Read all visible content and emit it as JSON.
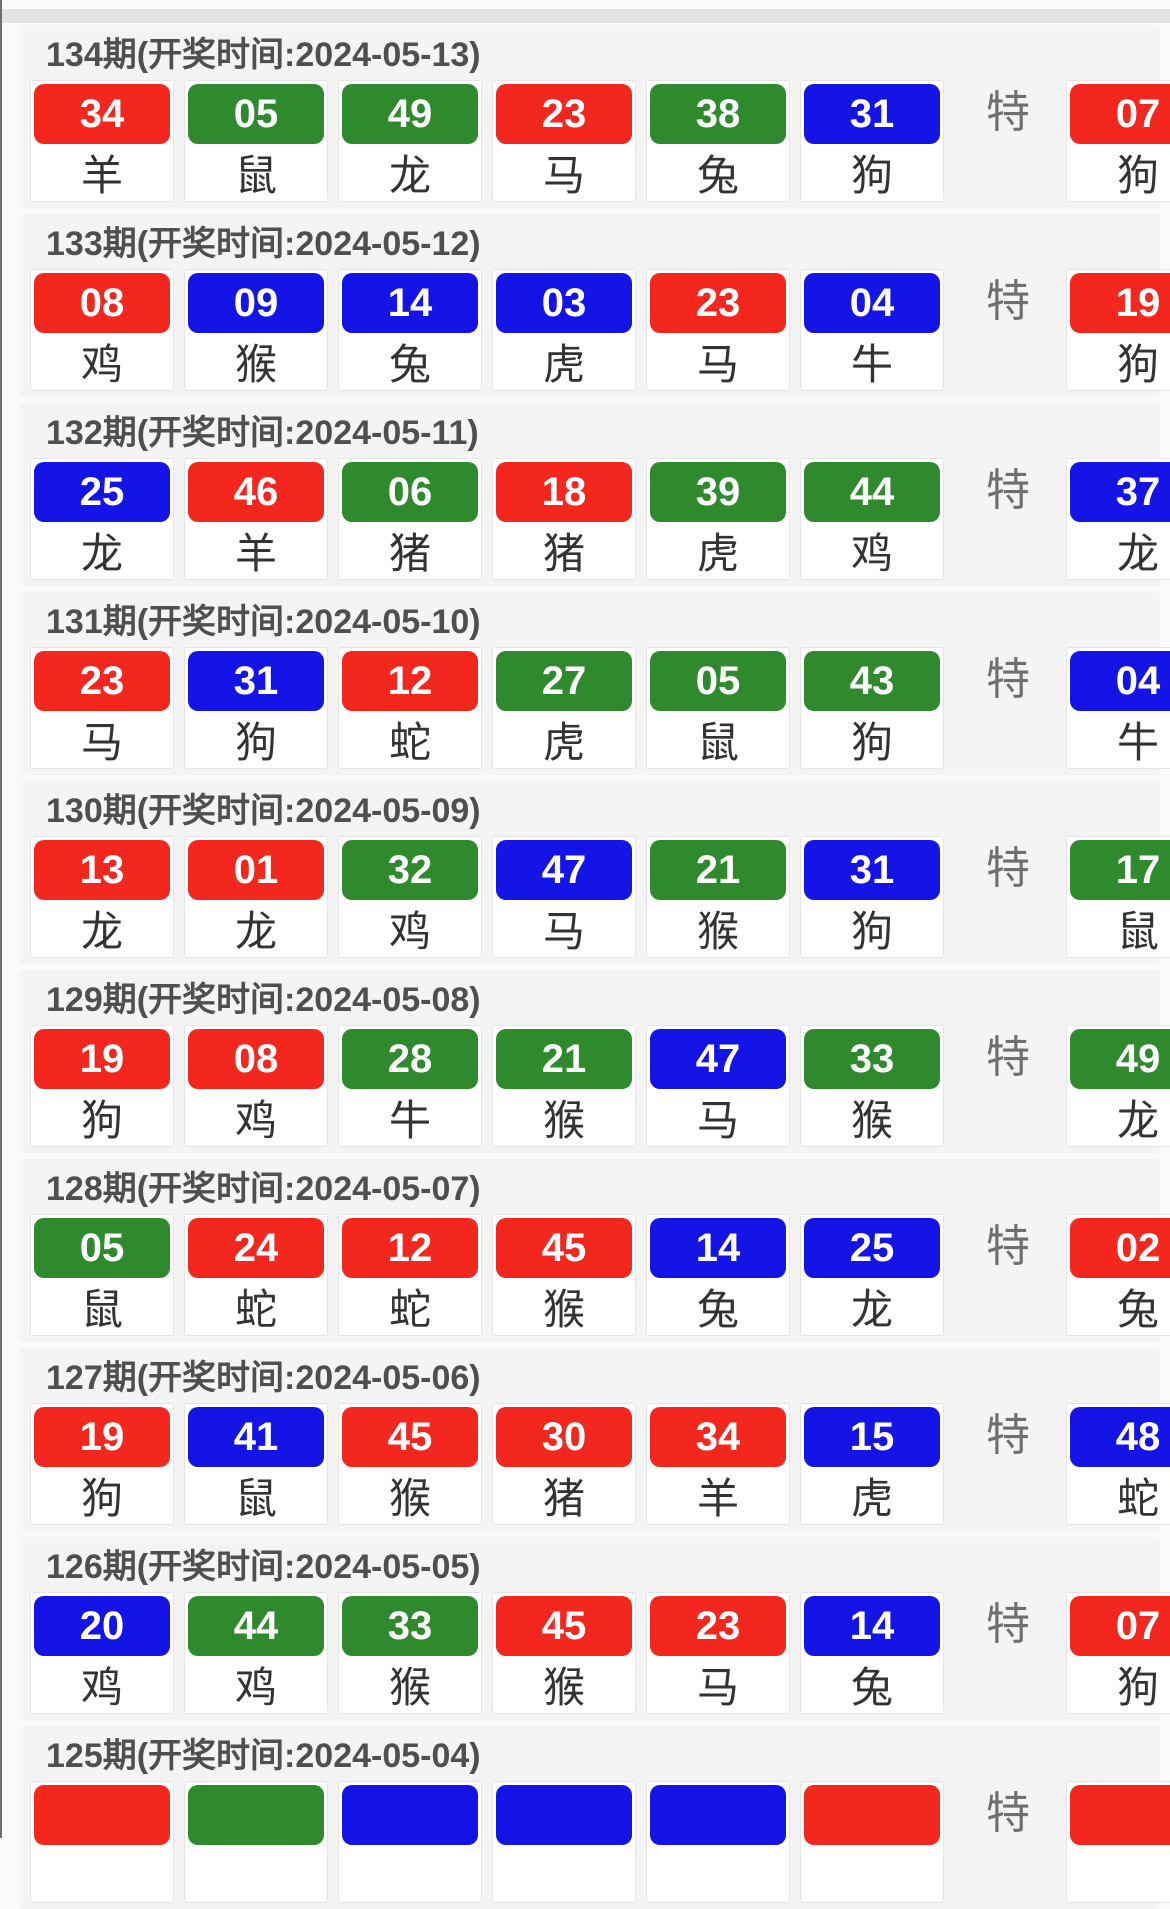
{
  "labels": {
    "special": "特"
  },
  "colors": {
    "red": "#f3271d",
    "green": "#2f8a2d",
    "blue": "#1414e6"
  },
  "periods": [
    {
      "header": "134期(开奖时间:2024-05-13)",
      "balls": [
        {
          "num": "34",
          "color": "red",
          "zodiac": "羊"
        },
        {
          "num": "05",
          "color": "green",
          "zodiac": "鼠"
        },
        {
          "num": "49",
          "color": "green",
          "zodiac": "龙"
        },
        {
          "num": "23",
          "color": "red",
          "zodiac": "马"
        },
        {
          "num": "38",
          "color": "green",
          "zodiac": "兔"
        },
        {
          "num": "31",
          "color": "blue",
          "zodiac": "狗"
        }
      ],
      "special": {
        "num": "07",
        "color": "red",
        "zodiac": "狗"
      }
    },
    {
      "header": "133期(开奖时间:2024-05-12)",
      "balls": [
        {
          "num": "08",
          "color": "red",
          "zodiac": "鸡"
        },
        {
          "num": "09",
          "color": "blue",
          "zodiac": "猴"
        },
        {
          "num": "14",
          "color": "blue",
          "zodiac": "兔"
        },
        {
          "num": "03",
          "color": "blue",
          "zodiac": "虎"
        },
        {
          "num": "23",
          "color": "red",
          "zodiac": "马"
        },
        {
          "num": "04",
          "color": "blue",
          "zodiac": "牛"
        }
      ],
      "special": {
        "num": "19",
        "color": "red",
        "zodiac": "狗"
      }
    },
    {
      "header": "132期(开奖时间:2024-05-11)",
      "balls": [
        {
          "num": "25",
          "color": "blue",
          "zodiac": "龙"
        },
        {
          "num": "46",
          "color": "red",
          "zodiac": "羊"
        },
        {
          "num": "06",
          "color": "green",
          "zodiac": "猪"
        },
        {
          "num": "18",
          "color": "red",
          "zodiac": "猪"
        },
        {
          "num": "39",
          "color": "green",
          "zodiac": "虎"
        },
        {
          "num": "44",
          "color": "green",
          "zodiac": "鸡"
        }
      ],
      "special": {
        "num": "37",
        "color": "blue",
        "zodiac": "龙"
      }
    },
    {
      "header": "131期(开奖时间:2024-05-10)",
      "balls": [
        {
          "num": "23",
          "color": "red",
          "zodiac": "马"
        },
        {
          "num": "31",
          "color": "blue",
          "zodiac": "狗"
        },
        {
          "num": "12",
          "color": "red",
          "zodiac": "蛇"
        },
        {
          "num": "27",
          "color": "green",
          "zodiac": "虎"
        },
        {
          "num": "05",
          "color": "green",
          "zodiac": "鼠"
        },
        {
          "num": "43",
          "color": "green",
          "zodiac": "狗"
        }
      ],
      "special": {
        "num": "04",
        "color": "blue",
        "zodiac": "牛"
      }
    },
    {
      "header": "130期(开奖时间:2024-05-09)",
      "balls": [
        {
          "num": "13",
          "color": "red",
          "zodiac": "龙"
        },
        {
          "num": "01",
          "color": "red",
          "zodiac": "龙"
        },
        {
          "num": "32",
          "color": "green",
          "zodiac": "鸡"
        },
        {
          "num": "47",
          "color": "blue",
          "zodiac": "马"
        },
        {
          "num": "21",
          "color": "green",
          "zodiac": "猴"
        },
        {
          "num": "31",
          "color": "blue",
          "zodiac": "狗"
        }
      ],
      "special": {
        "num": "17",
        "color": "green",
        "zodiac": "鼠"
      }
    },
    {
      "header": "129期(开奖时间:2024-05-08)",
      "balls": [
        {
          "num": "19",
          "color": "red",
          "zodiac": "狗"
        },
        {
          "num": "08",
          "color": "red",
          "zodiac": "鸡"
        },
        {
          "num": "28",
          "color": "green",
          "zodiac": "牛"
        },
        {
          "num": "21",
          "color": "green",
          "zodiac": "猴"
        },
        {
          "num": "47",
          "color": "blue",
          "zodiac": "马"
        },
        {
          "num": "33",
          "color": "green",
          "zodiac": "猴"
        }
      ],
      "special": {
        "num": "49",
        "color": "green",
        "zodiac": "龙"
      }
    },
    {
      "header": "128期(开奖时间:2024-05-07)",
      "balls": [
        {
          "num": "05",
          "color": "green",
          "zodiac": "鼠"
        },
        {
          "num": "24",
          "color": "red",
          "zodiac": "蛇"
        },
        {
          "num": "12",
          "color": "red",
          "zodiac": "蛇"
        },
        {
          "num": "45",
          "color": "red",
          "zodiac": "猴"
        },
        {
          "num": "14",
          "color": "blue",
          "zodiac": "兔"
        },
        {
          "num": "25",
          "color": "blue",
          "zodiac": "龙"
        }
      ],
      "special": {
        "num": "02",
        "color": "red",
        "zodiac": "兔"
      }
    },
    {
      "header": "127期(开奖时间:2024-05-06)",
      "balls": [
        {
          "num": "19",
          "color": "red",
          "zodiac": "狗"
        },
        {
          "num": "41",
          "color": "blue",
          "zodiac": "鼠"
        },
        {
          "num": "45",
          "color": "red",
          "zodiac": "猴"
        },
        {
          "num": "30",
          "color": "red",
          "zodiac": "猪"
        },
        {
          "num": "34",
          "color": "red",
          "zodiac": "羊"
        },
        {
          "num": "15",
          "color": "blue",
          "zodiac": "虎"
        }
      ],
      "special": {
        "num": "48",
        "color": "blue",
        "zodiac": "蛇"
      }
    },
    {
      "header": "126期(开奖时间:2024-05-05)",
      "balls": [
        {
          "num": "20",
          "color": "blue",
          "zodiac": "鸡"
        },
        {
          "num": "44",
          "color": "green",
          "zodiac": "鸡"
        },
        {
          "num": "33",
          "color": "green",
          "zodiac": "猴"
        },
        {
          "num": "45",
          "color": "red",
          "zodiac": "猴"
        },
        {
          "num": "23",
          "color": "red",
          "zodiac": "马"
        },
        {
          "num": "14",
          "color": "blue",
          "zodiac": "兔"
        }
      ],
      "special": {
        "num": "07",
        "color": "red",
        "zodiac": "狗"
      }
    },
    {
      "header": "125期(开奖时间:2024-05-04)",
      "balls": [
        {
          "num": "",
          "color": "red",
          "zodiac": ""
        },
        {
          "num": "",
          "color": "green",
          "zodiac": ""
        },
        {
          "num": "",
          "color": "blue",
          "zodiac": ""
        },
        {
          "num": "",
          "color": "blue",
          "zodiac": ""
        },
        {
          "num": "",
          "color": "blue",
          "zodiac": ""
        },
        {
          "num": "",
          "color": "red",
          "zodiac": ""
        }
      ],
      "special": {
        "num": "",
        "color": "red",
        "zodiac": ""
      }
    }
  ]
}
